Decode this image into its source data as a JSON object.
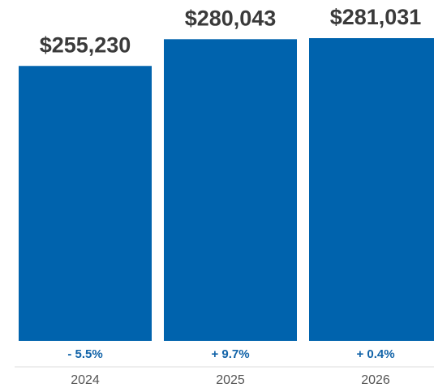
{
  "chart_data": {
    "type": "bar",
    "categories": [
      "2024",
      "2025",
      "2026"
    ],
    "values": [
      255230,
      280043,
      281031
    ],
    "value_labels": [
      "$255,230",
      "$280,043",
      "$281,031"
    ],
    "changes": [
      -5.5,
      9.7,
      0.4
    ],
    "change_labels": [
      "- 5.5%",
      "+ 9.7%",
      "+ 0.4%"
    ],
    "color": "#0063ad"
  }
}
